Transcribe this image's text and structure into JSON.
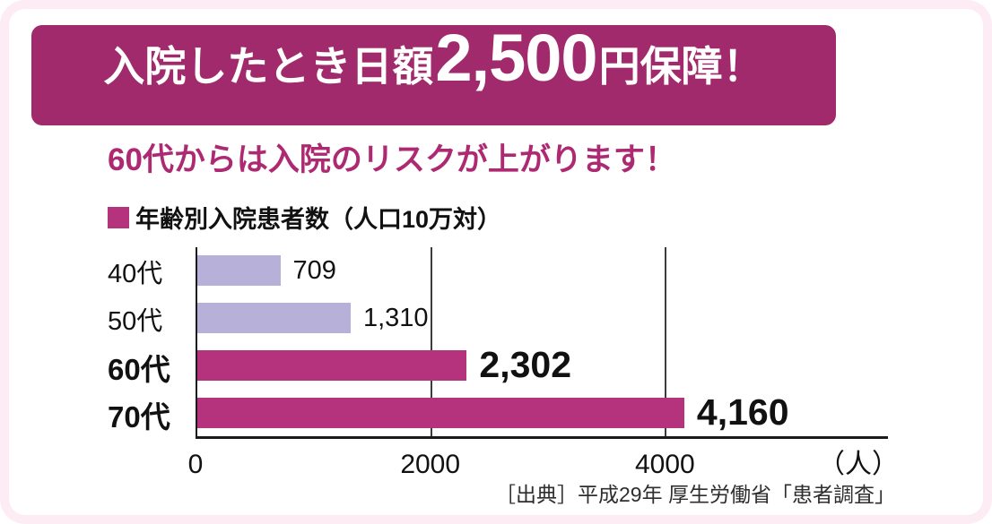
{
  "banner": {
    "text_before": "入院したとき日額",
    "amount": "2,500",
    "text_after": "円保障！"
  },
  "subtitle": "60代からは入院のリスクが上がります！",
  "legend_label": "年齢別入院患者数（人口10万対）",
  "source": "［出典］平成29年 厚生労働省「患者調査」",
  "colors": {
    "background": "#fdecf3",
    "banner": "#a12a6d",
    "accent": "#b5337d",
    "bar_normal": "#b7b0d8",
    "subtitle_text": "#ad2a72"
  },
  "chart_data": {
    "type": "bar",
    "orientation": "horizontal",
    "title": "年齢別入院患者数（人口10万対）",
    "categories": [
      "40代",
      "50代",
      "60代",
      "70代"
    ],
    "values": [
      709,
      1310,
      2302,
      4160
    ],
    "value_labels": [
      "709",
      "1,310",
      "2,302",
      "4,160"
    ],
    "highlight": [
      false,
      false,
      true,
      true
    ],
    "axis_max": 5900,
    "x_ticks": [
      0,
      2000,
      4000
    ],
    "x_tick_labels": [
      "0",
      "2000",
      "4000"
    ],
    "unit_label": "（人）",
    "grid": true,
    "legend_position": "top-left",
    "source": "［出典］平成29年 厚生労働省「患者調査」"
  }
}
